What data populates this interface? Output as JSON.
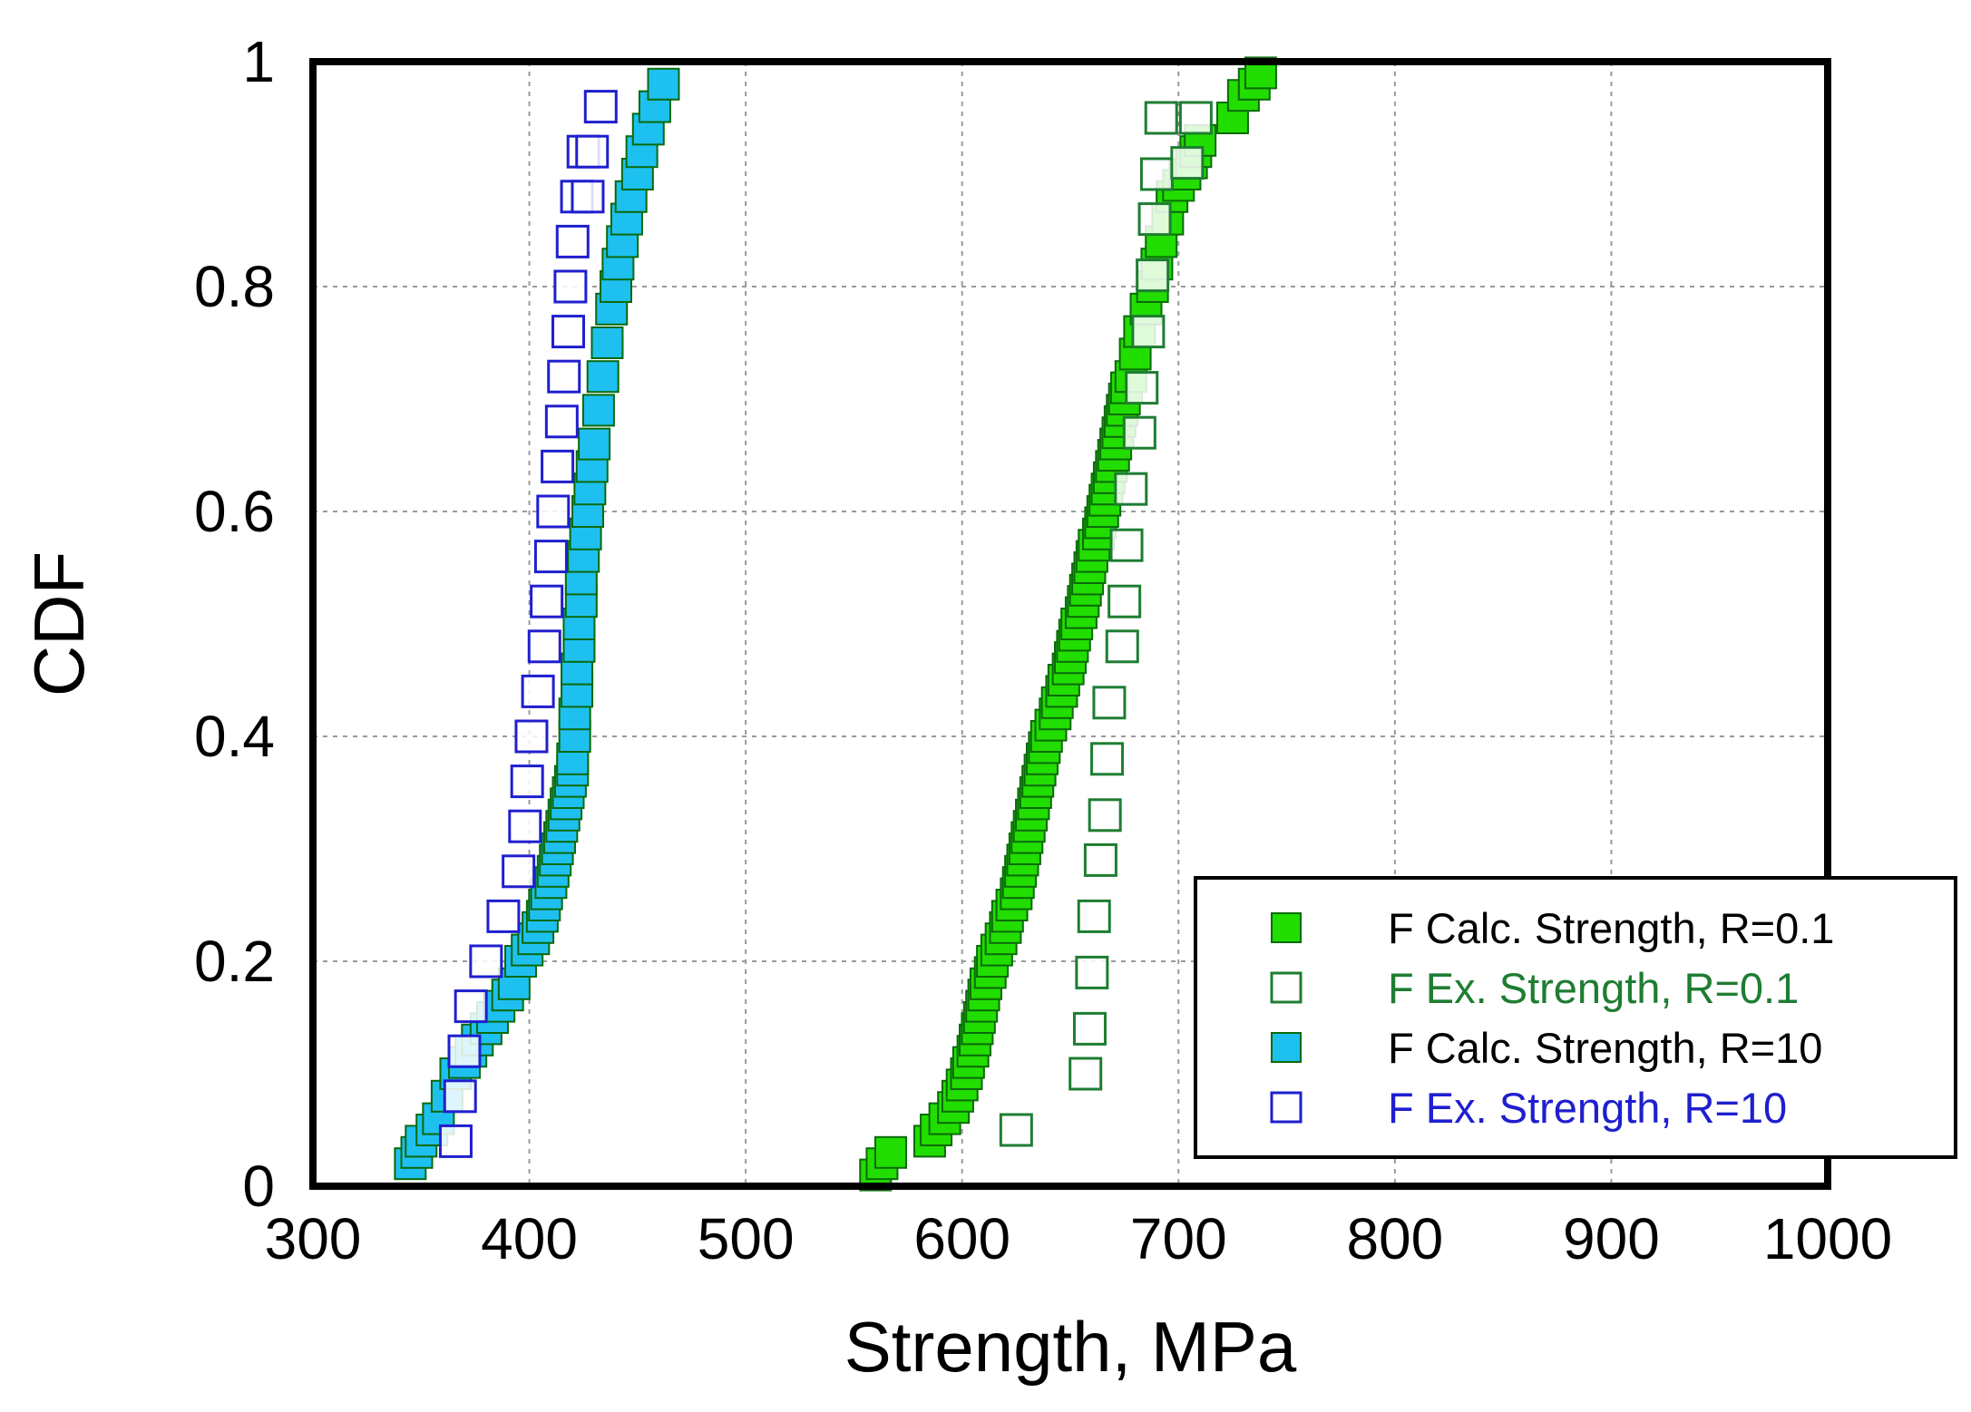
{
  "chart_data": {
    "type": "scatter",
    "xlabel": "Strength, MPa",
    "ylabel": "CDF",
    "xlim": [
      300,
      1000
    ],
    "ylim": [
      0,
      1
    ],
    "x_ticks": [
      "300",
      "400",
      "500",
      "600",
      "700",
      "800",
      "900",
      "1000"
    ],
    "y_ticks": [
      "0",
      "0.2",
      "0.4",
      "0.6",
      "0.8",
      "1"
    ],
    "grid": true,
    "legend_position": "bottom-right",
    "series": [
      {
        "name": "F Calc. Strength, R=0.1",
        "marker": "filled-square",
        "color": "#22dd00",
        "text_color": "#000000",
        "x": [
          560,
          563,
          567,
          585,
          588,
          592,
          596,
          598,
          600,
          602,
          603,
          605,
          606,
          607,
          608,
          609,
          610,
          611,
          613,
          614,
          616,
          618,
          620,
          621,
          623,
          625,
          626,
          627,
          628,
          629,
          630,
          631,
          632,
          633,
          634,
          635,
          636,
          637,
          638,
          639,
          641,
          643,
          644,
          646,
          647,
          649,
          650,
          651,
          652,
          653,
          655,
          656,
          657,
          658,
          659,
          660,
          661,
          663,
          664,
          665,
          666,
          667,
          668,
          669,
          670,
          671,
          672,
          673,
          674,
          675,
          676,
          678,
          680,
          682,
          685,
          688,
          690,
          692,
          695,
          697,
          700,
          703,
          706,
          708,
          710,
          725,
          730,
          735,
          738
        ],
        "y": [
          0.01,
          0.02,
          0.03,
          0.04,
          0.05,
          0.06,
          0.07,
          0.08,
          0.09,
          0.1,
          0.11,
          0.12,
          0.13,
          0.14,
          0.15,
          0.16,
          0.17,
          0.18,
          0.19,
          0.2,
          0.21,
          0.22,
          0.23,
          0.24,
          0.25,
          0.26,
          0.27,
          0.28,
          0.29,
          0.3,
          0.31,
          0.32,
          0.33,
          0.34,
          0.35,
          0.36,
          0.37,
          0.38,
          0.39,
          0.4,
          0.41,
          0.42,
          0.43,
          0.44,
          0.45,
          0.46,
          0.47,
          0.48,
          0.49,
          0.5,
          0.51,
          0.52,
          0.53,
          0.54,
          0.55,
          0.56,
          0.57,
          0.58,
          0.59,
          0.6,
          0.61,
          0.62,
          0.63,
          0.64,
          0.65,
          0.66,
          0.67,
          0.68,
          0.69,
          0.7,
          0.71,
          0.72,
          0.74,
          0.76,
          0.78,
          0.8,
          0.82,
          0.84,
          0.86,
          0.88,
          0.89,
          0.9,
          0.91,
          0.92,
          0.93,
          0.95,
          0.97,
          0.98,
          0.99
        ]
      },
      {
        "name": "F Ex. Strength, R=0.1",
        "marker": "open-square",
        "color": "#1e7d32",
        "text_color": "#1e7d32",
        "x": [
          625,
          657,
          659,
          660,
          661,
          664,
          666,
          667,
          668,
          674,
          675,
          676,
          678,
          682,
          683,
          686,
          688,
          689,
          690,
          692,
          704,
          708
        ],
        "y": [
          0.05,
          0.1,
          0.14,
          0.19,
          0.24,
          0.29,
          0.33,
          0.38,
          0.43,
          0.48,
          0.52,
          0.57,
          0.62,
          0.67,
          0.71,
          0.76,
          0.81,
          0.86,
          0.9,
          0.95,
          0.91,
          0.95
        ]
      },
      {
        "name": "F Calc. Strength, R=10",
        "marker": "filled-square",
        "color": "#1ec0f0",
        "text_color": "#000000",
        "x": [
          345,
          348,
          350,
          355,
          358,
          362,
          366,
          370,
          373,
          376,
          380,
          383,
          386,
          390,
          393,
          396,
          399,
          402,
          404,
          406,
          407,
          408,
          410,
          411,
          412,
          413,
          414,
          415,
          416,
          417,
          418,
          419,
          420,
          420,
          421,
          421,
          422,
          422,
          423,
          423,
          424,
          424,
          425,
          426,
          427,
          428,
          429,
          430,
          432,
          434,
          436,
          438,
          440,
          441,
          443,
          445,
          447,
          450,
          452,
          455,
          458,
          462
        ],
        "y": [
          0.02,
          0.03,
          0.04,
          0.05,
          0.06,
          0.08,
          0.1,
          0.11,
          0.12,
          0.13,
          0.14,
          0.15,
          0.16,
          0.17,
          0.18,
          0.2,
          0.21,
          0.22,
          0.23,
          0.24,
          0.25,
          0.26,
          0.27,
          0.28,
          0.29,
          0.3,
          0.31,
          0.32,
          0.33,
          0.34,
          0.35,
          0.36,
          0.37,
          0.38,
          0.4,
          0.42,
          0.44,
          0.46,
          0.48,
          0.5,
          0.52,
          0.54,
          0.56,
          0.58,
          0.6,
          0.62,
          0.64,
          0.66,
          0.69,
          0.72,
          0.75,
          0.78,
          0.8,
          0.82,
          0.84,
          0.86,
          0.88,
          0.9,
          0.92,
          0.94,
          0.96,
          0.98
        ]
      },
      {
        "name": "F Ex. Strength, R=10",
        "marker": "open-square",
        "color": "#1f1fcf",
        "text_color": "#1f1fcf",
        "x": [
          366,
          368,
          370,
          373,
          380,
          388,
          395,
          398,
          399,
          401,
          404,
          407,
          408,
          410,
          411,
          413,
          415,
          416,
          418,
          419,
          420,
          422,
          425,
          427,
          429,
          433
        ],
        "y": [
          0.04,
          0.08,
          0.12,
          0.16,
          0.2,
          0.24,
          0.28,
          0.32,
          0.36,
          0.4,
          0.44,
          0.48,
          0.52,
          0.56,
          0.6,
          0.64,
          0.68,
          0.72,
          0.76,
          0.8,
          0.84,
          0.88,
          0.92,
          0.88,
          0.92,
          0.96
        ]
      }
    ]
  }
}
